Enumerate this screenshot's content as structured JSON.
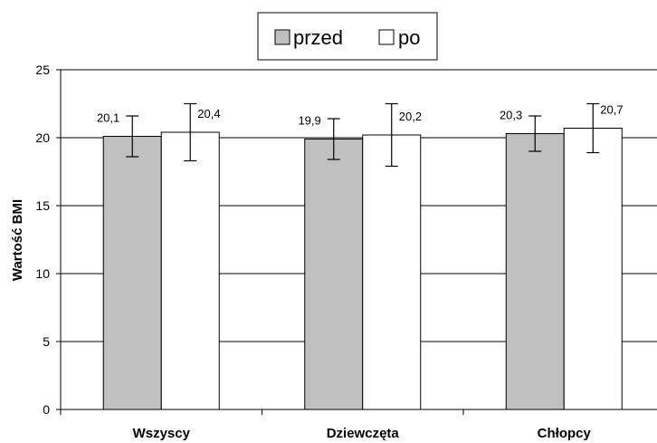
{
  "chart_data": {
    "type": "bar",
    "categories": [
      "Wszyscy",
      "Dziewczęta",
      "Chłopcy"
    ],
    "series": [
      {
        "name": "przed",
        "values": [
          20.1,
          19.9,
          20.3
        ],
        "labels": [
          "20,1",
          "19,9",
          "20,3"
        ],
        "error_low": [
          18.6,
          18.4,
          19.0
        ],
        "error_high": [
          21.6,
          21.4,
          21.6
        ],
        "color": "#c0c0c0"
      },
      {
        "name": "po",
        "values": [
          20.4,
          20.2,
          20.7
        ],
        "labels": [
          "20,4",
          "20,2",
          "20,7"
        ],
        "error_low": [
          18.3,
          17.9,
          18.9
        ],
        "error_high": [
          22.5,
          22.5,
          22.5
        ],
        "color": "#ffffff"
      }
    ],
    "title": "",
    "xlabel": "",
    "ylabel": "Wartość BMI",
    "ylim": [
      0,
      25
    ],
    "yticks": [
      0,
      5,
      10,
      15,
      20,
      25
    ],
    "grid": true,
    "legend": "top-center"
  }
}
